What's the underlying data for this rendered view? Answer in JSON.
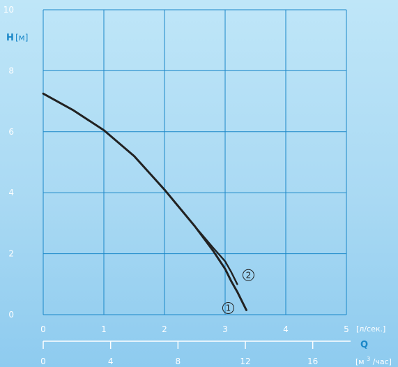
{
  "chart_data": {
    "type": "line",
    "ylabel_symbol": "H",
    "ylabel_unit": "[м]",
    "xlabel_symbol": "Q",
    "x_unit_primary": "[л/сек.]",
    "x_unit_secondary_base": "[м",
    "x_unit_secondary_sup": "3",
    "x_unit_secondary_tail": "/час]",
    "xlim": [
      0,
      5
    ],
    "ylim": [
      0,
      10
    ],
    "x_ticks": [
      "0",
      "1",
      "2",
      "3",
      "4",
      "5"
    ],
    "y_ticks": [
      "0",
      "2",
      "4",
      "6",
      "8",
      "10"
    ],
    "x2_ticks": [
      "0",
      "4",
      "8",
      "12",
      "16"
    ],
    "grid": true,
    "colors": {
      "grid": "#1a87c8",
      "curve": "#222222",
      "label": "#1a87c8"
    },
    "series": [
      {
        "marker": "1",
        "x": [
          0,
          0.5,
          1.0,
          1.5,
          2.0,
          2.5,
          2.8,
          3.0,
          3.1,
          3.2,
          3.3,
          3.35
        ],
        "y": [
          7.25,
          6.7,
          6.05,
          5.2,
          4.1,
          2.9,
          2.1,
          1.5,
          1.1,
          0.75,
          0.35,
          0.15
        ]
      },
      {
        "marker": "2",
        "x": [
          0,
          0.5,
          1.0,
          1.5,
          2.0,
          2.5,
          2.8,
          3.0,
          3.1,
          3.2
        ],
        "y": [
          7.25,
          6.7,
          6.05,
          5.2,
          4.1,
          2.9,
          2.2,
          1.75,
          1.4,
          1.0
        ]
      }
    ]
  }
}
